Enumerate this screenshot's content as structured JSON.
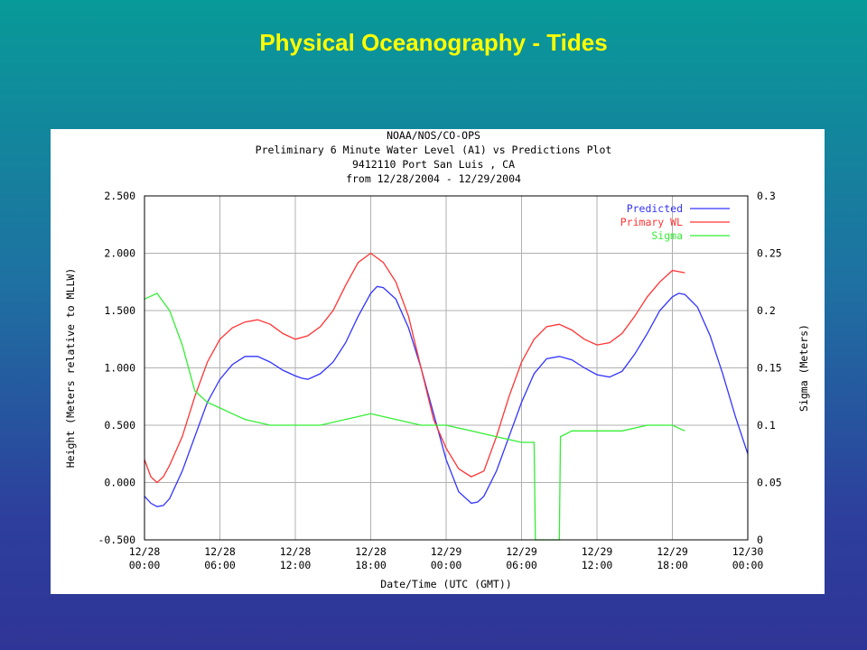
{
  "slide": {
    "title": "Physical Oceanography - Tides"
  },
  "chart_data": {
    "type": "line",
    "title_lines": [
      "NOAA/NOS/CO-OPS",
      "Preliminary 6 Minute Water Level (A1) vs Predictions Plot",
      "9412110 Port San Luis , CA",
      "from 12/28/2004 - 12/29/2004"
    ],
    "xlabel": "Date/Time (UTC (GMT))",
    "ylabel": "Height (Meters relative to MLLW)",
    "y2label": "Sigma (Meters)",
    "xlim_hours": [
      0,
      48
    ],
    "ylim": [
      -0.5,
      2.5
    ],
    "y2lim": [
      0,
      0.3
    ],
    "x_ticks": [
      {
        "hour": 0,
        "date": "12/28",
        "time": "00:00"
      },
      {
        "hour": 6,
        "date": "12/28",
        "time": "06:00"
      },
      {
        "hour": 12,
        "date": "12/28",
        "time": "12:00"
      },
      {
        "hour": 18,
        "date": "12/28",
        "time": "18:00"
      },
      {
        "hour": 24,
        "date": "12/29",
        "time": "00:00"
      },
      {
        "hour": 30,
        "date": "12/29",
        "time": "06:00"
      },
      {
        "hour": 36,
        "date": "12/29",
        "time": "12:00"
      },
      {
        "hour": 42,
        "date": "12/29",
        "time": "18:00"
      },
      {
        "hour": 48,
        "date": "12/30",
        "time": "00:00"
      }
    ],
    "y_ticks": [
      {
        "v": 2.5,
        "label": "2.500"
      },
      {
        "v": 2.0,
        "label": "2.000"
      },
      {
        "v": 1.5,
        "label": "1.500"
      },
      {
        "v": 1.0,
        "label": "1.000"
      },
      {
        "v": 0.5,
        "label": "0.500"
      },
      {
        "v": 0.0,
        "label": "0.000"
      },
      {
        "v": -0.5,
        "label": "-0.500"
      }
    ],
    "y2_ticks": [
      {
        "v": 0.3,
        "label": "0.3"
      },
      {
        "v": 0.25,
        "label": "0.25"
      },
      {
        "v": 0.2,
        "label": "0.2"
      },
      {
        "v": 0.15,
        "label": "0.15"
      },
      {
        "v": 0.1,
        "label": "0.1"
      },
      {
        "v": 0.05,
        "label": "0.05"
      },
      {
        "v": 0,
        "label": "0"
      }
    ],
    "grid": true,
    "legend_position": "top-right",
    "series": [
      {
        "name": "Predicted",
        "color": "#3333ff",
        "axis": "left",
        "points": [
          [
            0,
            -0.12
          ],
          [
            0.5,
            -0.18
          ],
          [
            1,
            -0.21
          ],
          [
            1.5,
            -0.2
          ],
          [
            2,
            -0.14
          ],
          [
            3,
            0.1
          ],
          [
            4,
            0.4
          ],
          [
            5,
            0.7
          ],
          [
            6,
            0.9
          ],
          [
            7,
            1.03
          ],
          [
            8,
            1.1
          ],
          [
            9,
            1.1
          ],
          [
            10,
            1.05
          ],
          [
            11,
            0.98
          ],
          [
            12,
            0.93
          ],
          [
            12.5,
            0.91
          ],
          [
            13,
            0.9
          ],
          [
            14,
            0.95
          ],
          [
            15,
            1.05
          ],
          [
            16,
            1.22
          ],
          [
            17,
            1.45
          ],
          [
            18,
            1.65
          ],
          [
            18.5,
            1.71
          ],
          [
            19,
            1.7
          ],
          [
            20,
            1.6
          ],
          [
            21,
            1.35
          ],
          [
            22,
            1.0
          ],
          [
            23,
            0.6
          ],
          [
            24,
            0.2
          ],
          [
            25,
            -0.08
          ],
          [
            26,
            -0.18
          ],
          [
            26.5,
            -0.17
          ],
          [
            27,
            -0.12
          ],
          [
            28,
            0.1
          ],
          [
            29,
            0.4
          ],
          [
            30,
            0.7
          ],
          [
            31,
            0.95
          ],
          [
            32,
            1.08
          ],
          [
            33,
            1.1
          ],
          [
            34,
            1.07
          ],
          [
            35,
            1.0
          ],
          [
            36,
            0.94
          ],
          [
            37,
            0.92
          ],
          [
            38,
            0.97
          ],
          [
            39,
            1.12
          ],
          [
            40,
            1.3
          ],
          [
            41,
            1.5
          ],
          [
            42,
            1.62
          ],
          [
            42.5,
            1.65
          ],
          [
            43,
            1.64
          ],
          [
            44,
            1.53
          ],
          [
            45,
            1.28
          ],
          [
            46,
            0.95
          ],
          [
            47,
            0.58
          ],
          [
            48,
            0.25
          ]
        ]
      },
      {
        "name": "Primary WL",
        "color": "#ff3333",
        "axis": "left",
        "points": [
          [
            0,
            0.2
          ],
          [
            0.5,
            0.05
          ],
          [
            1,
            0.0
          ],
          [
            1.5,
            0.05
          ],
          [
            2,
            0.15
          ],
          [
            3,
            0.4
          ],
          [
            4,
            0.75
          ],
          [
            5,
            1.05
          ],
          [
            6,
            1.25
          ],
          [
            7,
            1.35
          ],
          [
            8,
            1.4
          ],
          [
            9,
            1.42
          ],
          [
            10,
            1.38
          ],
          [
            11,
            1.3
          ],
          [
            12,
            1.25
          ],
          [
            13,
            1.28
          ],
          [
            14,
            1.36
          ],
          [
            15,
            1.5
          ],
          [
            16,
            1.72
          ],
          [
            17,
            1.92
          ],
          [
            18,
            2.0
          ],
          [
            19,
            1.92
          ],
          [
            20,
            1.75
          ],
          [
            21,
            1.45
          ],
          [
            22,
            1.0
          ],
          [
            23,
            0.55
          ],
          [
            24,
            0.3
          ],
          [
            25,
            0.12
          ],
          [
            26,
            0.05
          ],
          [
            27,
            0.1
          ],
          [
            28,
            0.4
          ],
          [
            29,
            0.75
          ],
          [
            30,
            1.05
          ],
          [
            31,
            1.25
          ],
          [
            32,
            1.36
          ],
          [
            33,
            1.38
          ],
          [
            34,
            1.33
          ],
          [
            35,
            1.25
          ],
          [
            36,
            1.2
          ],
          [
            37,
            1.22
          ],
          [
            38,
            1.3
          ],
          [
            39,
            1.45
          ],
          [
            40,
            1.62
          ],
          [
            41,
            1.75
          ],
          [
            42,
            1.85
          ],
          [
            43,
            1.83
          ]
        ]
      },
      {
        "name": "Sigma",
        "color": "#33ee33",
        "axis": "right",
        "points": [
          [
            0,
            0.21
          ],
          [
            1,
            0.215
          ],
          [
            2,
            0.2
          ],
          [
            3,
            0.17
          ],
          [
            4,
            0.13
          ],
          [
            5,
            0.12
          ],
          [
            6,
            0.115
          ],
          [
            7,
            0.11
          ],
          [
            8,
            0.105
          ],
          [
            10,
            0.1
          ],
          [
            12,
            0.1
          ],
          [
            14,
            0.1
          ],
          [
            16,
            0.105
          ],
          [
            18,
            0.11
          ],
          [
            20,
            0.105
          ],
          [
            22,
            0.1
          ],
          [
            24,
            0.1
          ],
          [
            26,
            0.095
          ],
          [
            28,
            0.09
          ],
          [
            30,
            0.085
          ],
          [
            31,
            0.085
          ],
          [
            31.1,
            0
          ],
          [
            33,
            0
          ],
          [
            33.1,
            0.09
          ],
          [
            34,
            0.095
          ],
          [
            36,
            0.095
          ],
          [
            38,
            0.095
          ],
          [
            40,
            0.1
          ],
          [
            42,
            0.1
          ],
          [
            43,
            0.095
          ]
        ]
      }
    ]
  }
}
